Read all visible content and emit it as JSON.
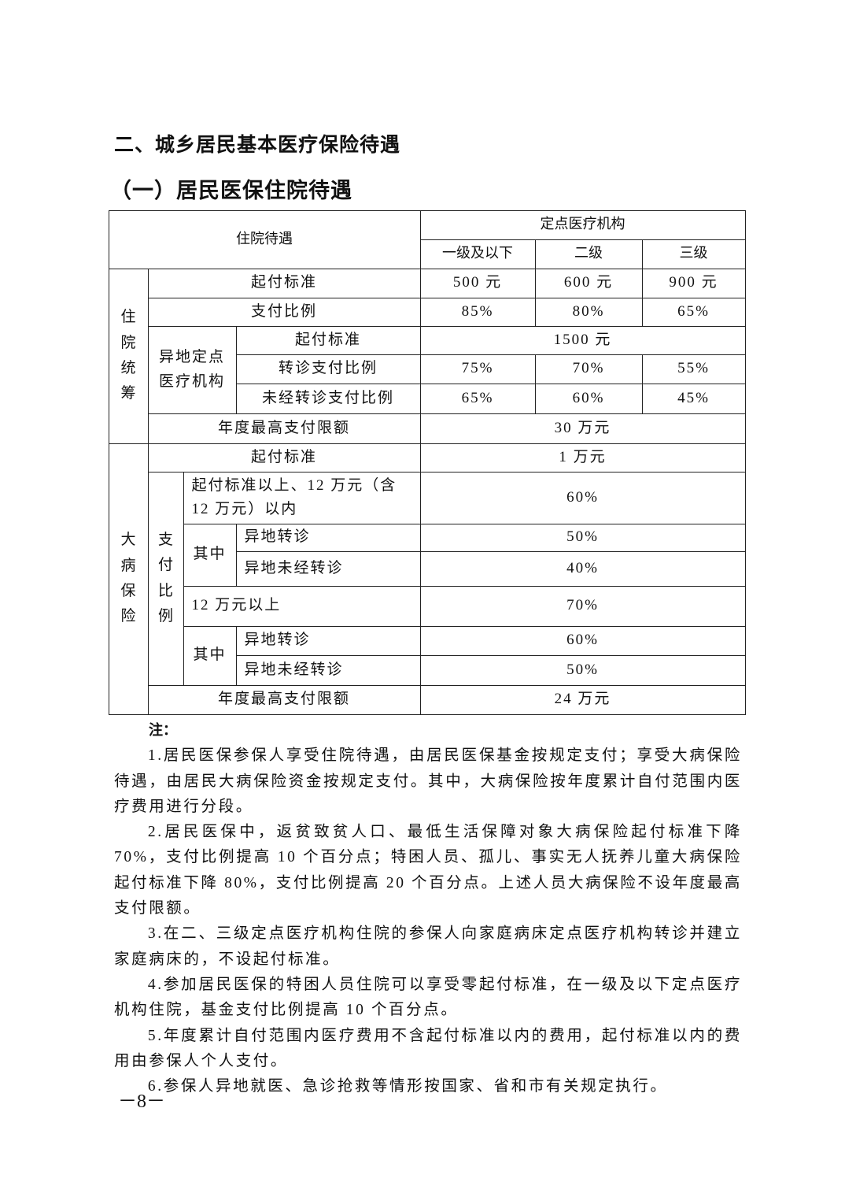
{
  "section_title": "二、城乡居民基本医疗保险待遇",
  "subsection_title": "（一）居民医保住院待遇",
  "table": {
    "header": {
      "treatment": "住院待遇",
      "designated_institutions": "定点医疗机构",
      "levels": [
        "一级及以下",
        "二级",
        "三级"
      ]
    },
    "inpatient_pooling": {
      "label": "住院统筹",
      "deductible": {
        "label": "起付标准",
        "values": [
          "500 元",
          "600 元",
          "900 元"
        ]
      },
      "payment_ratio": {
        "label": "支付比例",
        "values": [
          "85%",
          "80%",
          "65%"
        ]
      },
      "offsite": {
        "label": "异地定点医疗机构",
        "deductible": {
          "label": "起付标准",
          "value": "1500 元"
        },
        "referral_ratio": {
          "label": "转诊支付比例",
          "values": [
            "75%",
            "70%",
            "55%"
          ]
        },
        "no_referral_ratio": {
          "label": "未经转诊支付比例",
          "values": [
            "65%",
            "60%",
            "45%"
          ]
        }
      },
      "annual_cap": {
        "label": "年度最高支付限额",
        "value": "30 万元"
      }
    },
    "critical_illness": {
      "label": "大病保险",
      "deductible": {
        "label": "起付标准",
        "value": "1 万元"
      },
      "payment_ratio_label": "支付比例",
      "tier1": {
        "label": "起付标准以上、12 万元（含 12 万元）以内",
        "value": "60%"
      },
      "tier1_among": "其中",
      "tier1_referral": {
        "label": "异地转诊",
        "value": "50%"
      },
      "tier1_no_referral": {
        "label": "异地未经转诊",
        "value": "40%"
      },
      "tier2": {
        "label": "12 万元以上",
        "value": "70%"
      },
      "tier2_among": "其中",
      "tier2_referral": {
        "label": "异地转诊",
        "value": "60%"
      },
      "tier2_no_referral": {
        "label": "异地未经转诊",
        "value": "50%"
      },
      "annual_cap": {
        "label": "年度最高支付限额",
        "value": "24 万元"
      }
    }
  },
  "notes": {
    "heading": "注：",
    "items": [
      "1.居民医保参保人享受住院待遇，由居民医保基金按规定支付；享受大病保险待遇，由居民大病保险资金按规定支付。其中，大病保险按年度累计自付范围内医疗费用进行分段。",
      "2.居民医保中，返贫致贫人口、最低生活保障对象大病保险起付标准下降 70%，支付比例提高 10 个百分点；特困人员、孤儿、事实无人抚养儿童大病保险起付标准下降 80%，支付比例提高 20 个百分点。上述人员大病保险不设年度最高支付限额。",
      "3.在二、三级定点医疗机构住院的参保人向家庭病床定点医疗机构转诊并建立家庭病床的，不设起付标准。",
      "4.参加居民医保的特困人员住院可以享受零起付标准，在一级及以下定点医疗机构住院，基金支付比例提高 10 个百分点。",
      "5.年度累计自付范围内医疗费用不含起付标准以内的费用，起付标准以内的费用由参保人个人支付。",
      "6.参保人异地就医、急诊抢救等情形按国家、省和市有关规定执行。"
    ]
  },
  "page_number": "－8－"
}
